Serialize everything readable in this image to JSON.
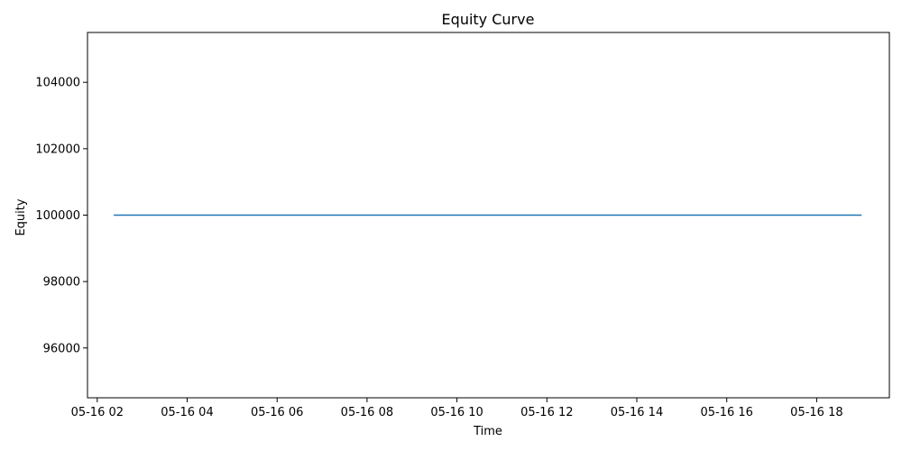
{
  "chart_data": {
    "type": "line",
    "title": "Equity Curve",
    "xlabel": "Time",
    "ylabel": "Equity",
    "grid": false,
    "legend": "none",
    "xlim": [
      "2024-05-16 01:47",
      "2024-05-16 19:37"
    ],
    "ylim": [
      94500,
      105500
    ],
    "x_ticks": [
      {
        "value": "2024-05-16 02:00",
        "label": "05-16 02"
      },
      {
        "value": "2024-05-16 04:00",
        "label": "05-16 04"
      },
      {
        "value": "2024-05-16 06:00",
        "label": "05-16 06"
      },
      {
        "value": "2024-05-16 08:00",
        "label": "05-16 08"
      },
      {
        "value": "2024-05-16 10:00",
        "label": "05-16 10"
      },
      {
        "value": "2024-05-16 12:00",
        "label": "05-16 12"
      },
      {
        "value": "2024-05-16 14:00",
        "label": "05-16 14"
      },
      {
        "value": "2024-05-16 16:00",
        "label": "05-16 16"
      },
      {
        "value": "2024-05-16 18:00",
        "label": "05-16 18"
      }
    ],
    "y_ticks": [
      {
        "value": 96000,
        "label": "96000"
      },
      {
        "value": 98000,
        "label": "98000"
      },
      {
        "value": 100000,
        "label": "100000"
      },
      {
        "value": 102000,
        "label": "102000"
      },
      {
        "value": 104000,
        "label": "104000"
      }
    ],
    "series": [
      {
        "color": "#1f77b4",
        "x": [
          "2024-05-16 02:22",
          "2024-05-16 19:00"
        ],
        "y": [
          100000,
          100000
        ]
      }
    ]
  }
}
